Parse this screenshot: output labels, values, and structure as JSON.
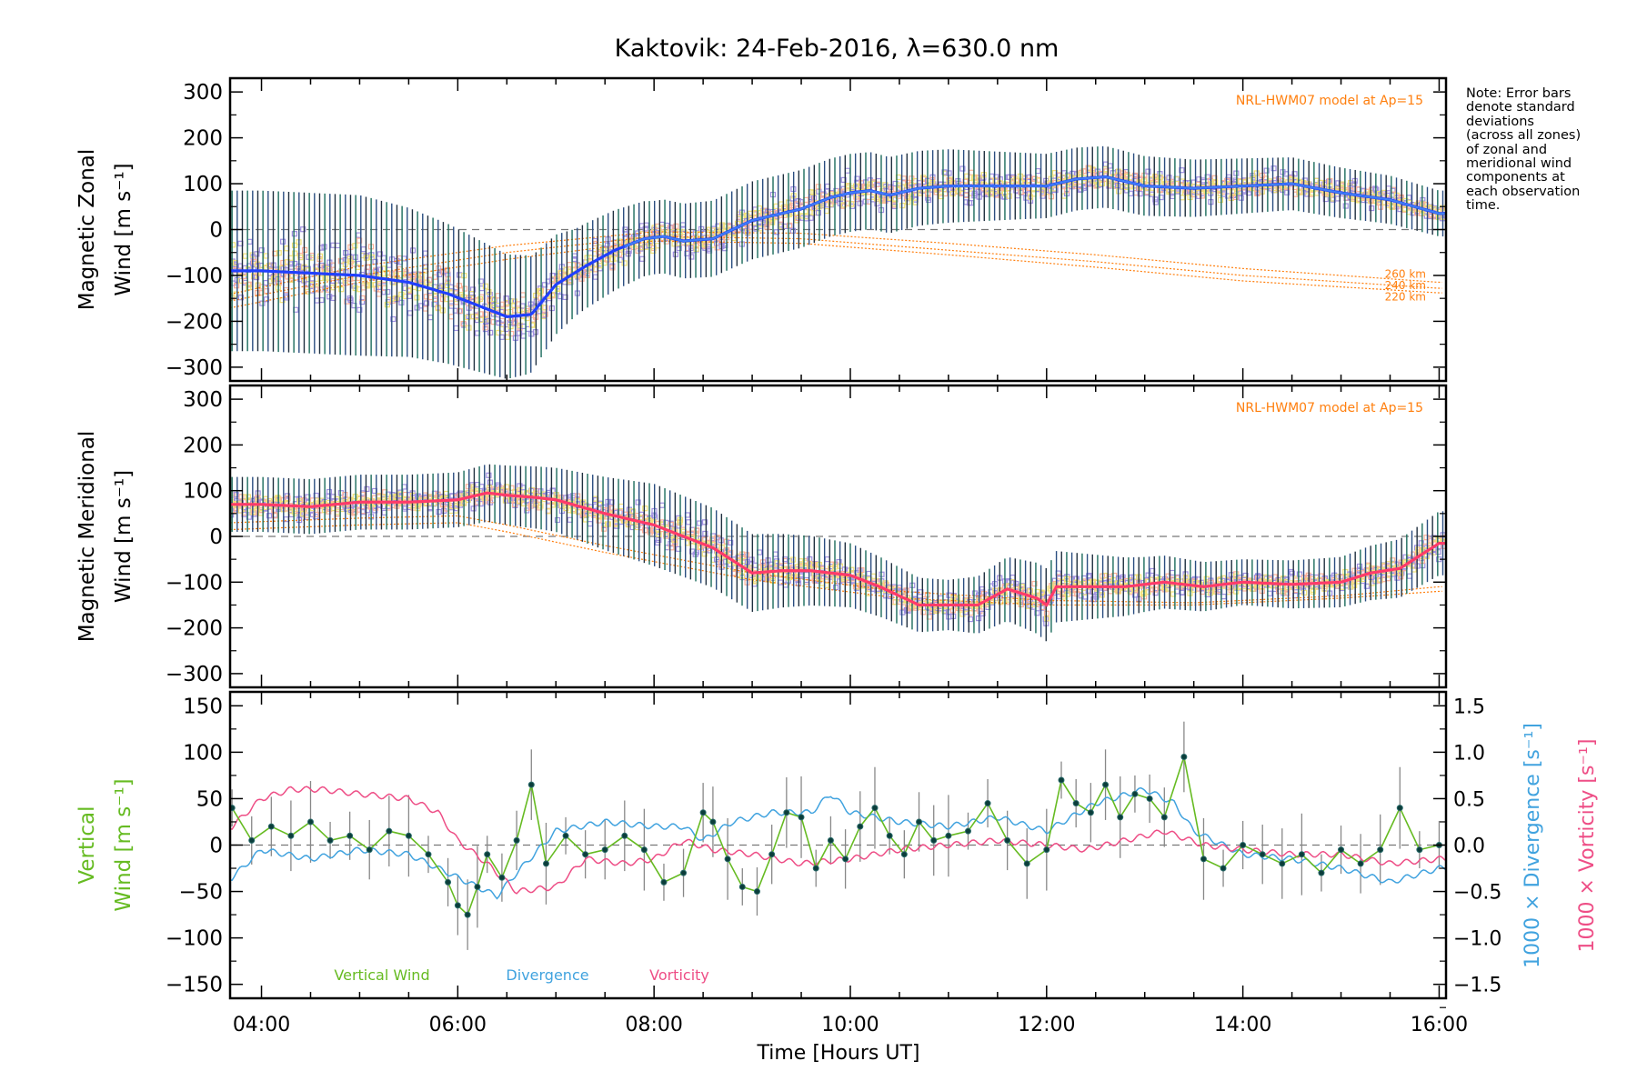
{
  "title": "Kaktovik: 24-Feb-2016, λ=630.0 nm",
  "note": "Note: Error bars\ndenote standard\ndeviations\n(across all zones)\nof zonal and\nmeridional wind\ncomponents at\neach observation\ntime.",
  "colors": {
    "zonal": "#2140ff",
    "meridional": "#ff3b6a",
    "vertical": "#66bb22",
    "divergence": "#41a3df",
    "vorticity": "#ee4e86",
    "model": "#ff7f0e",
    "scatter_purple": "#a090e0",
    "scatter_salmon": "#ffb29a",
    "scatter_yellow": "#f1e27a"
  },
  "chart_data": [
    {
      "type": "line",
      "name": "zonal",
      "ylabel": [
        "Magnetic Zonal",
        "Wind [m s⁻¹]"
      ],
      "ylim": [
        -330,
        330
      ],
      "yticks": [
        -300,
        -200,
        -100,
        0,
        100,
        200,
        300
      ],
      "xlim": [
        3.68,
        16.07
      ],
      "model_label": "NRL-HWM07 model at Ap=15",
      "model_alt_labels": [
        "260 km",
        "240 km",
        "220 km"
      ],
      "mean_curve": {
        "x": [
          3.7,
          4.0,
          4.5,
          5.0,
          5.5,
          5.9,
          6.2,
          6.5,
          6.75,
          7.0,
          7.3,
          7.6,
          7.9,
          8.1,
          8.3,
          8.6,
          9.0,
          9.5,
          9.8,
          10.0,
          10.2,
          10.4,
          10.7,
          11.0,
          11.5,
          12.0,
          12.3,
          12.6,
          13.0,
          13.5,
          14.0,
          14.5,
          15.0,
          15.5,
          16.0
        ],
        "y": [
          -90,
          -90,
          -95,
          -100,
          -115,
          -140,
          -165,
          -190,
          -185,
          -120,
          -80,
          -45,
          -20,
          -15,
          -25,
          -20,
          20,
          45,
          70,
          80,
          85,
          75,
          90,
          95,
          95,
          95,
          110,
          115,
          95,
          90,
          95,
          100,
          80,
          65,
          35
        ]
      },
      "model_curves": [
        {
          "label": "260 km",
          "x": [
            3.7,
            5.0,
            6.5,
            8.0,
            9.5,
            11.0,
            12.5,
            14.0,
            16.0
          ],
          "y": [
            -140,
            -80,
            -35,
            -5,
            -8,
            -30,
            -55,
            -85,
            -115
          ]
        },
        {
          "label": "240 km",
          "x": [
            3.7,
            5.0,
            6.5,
            8.0,
            9.5,
            11.0,
            12.5,
            14.0,
            16.0
          ],
          "y": [
            -155,
            -100,
            -50,
            -15,
            -20,
            -45,
            -70,
            -100,
            -128
          ]
        },
        {
          "label": "220 km",
          "x": [
            3.7,
            5.0,
            6.5,
            8.0,
            9.5,
            11.0,
            12.5,
            14.0,
            16.0
          ],
          "y": [
            -170,
            -115,
            -65,
            -25,
            -30,
            -55,
            -82,
            -112,
            -138
          ]
        }
      ],
      "errorbar_halfwidth": {
        "x": [
          3.7,
          5.0,
          6.0,
          6.7,
          7.2,
          8.0,
          9.0,
          10.0,
          11.0,
          12.0,
          13.0,
          14.0,
          15.0,
          16.0
        ],
        "y": [
          175,
          175,
          150,
          130,
          95,
          80,
          85,
          85,
          80,
          70,
          65,
          60,
          55,
          50
        ]
      }
    },
    {
      "type": "line",
      "name": "meridional",
      "ylabel": [
        "Magnetic Meridional",
        "Wind [m s⁻¹]"
      ],
      "ylim": [
        -330,
        330
      ],
      "yticks": [
        -300,
        -200,
        -100,
        0,
        100,
        200,
        300
      ],
      "xlim": [
        3.68,
        16.07
      ],
      "model_label": "NRL-HWM07 model at Ap=15",
      "mean_curve": {
        "x": [
          3.7,
          4.0,
          4.5,
          5.0,
          5.5,
          6.0,
          6.3,
          6.5,
          6.8,
          7.0,
          7.5,
          8.0,
          8.3,
          8.6,
          9.0,
          9.3,
          9.6,
          10.0,
          10.3,
          10.7,
          11.0,
          11.3,
          11.6,
          11.9,
          12.0,
          12.1,
          12.4,
          12.8,
          13.2,
          13.6,
          14.0,
          14.5,
          15.0,
          15.3,
          15.6,
          16.0
        ],
        "y": [
          70,
          70,
          65,
          75,
          75,
          80,
          95,
          90,
          85,
          80,
          50,
          25,
          0,
          -25,
          -80,
          -75,
          -75,
          -85,
          -110,
          -150,
          -150,
          -150,
          -115,
          -135,
          -150,
          -110,
          -110,
          -110,
          -100,
          -110,
          -100,
          -105,
          -100,
          -80,
          -70,
          -15
        ]
      },
      "model_curves": [
        {
          "x": [
            3.7,
            5.0,
            6.0,
            6.5,
            7.5,
            9.0,
            10.5,
            12.0,
            13.5,
            15.0,
            16.0
          ],
          "y": [
            30,
            40,
            45,
            25,
            -20,
            -80,
            -120,
            -140,
            -145,
            -130,
            -110
          ]
        },
        {
          "x": [
            3.7,
            5.0,
            6.0,
            6.5,
            7.5,
            9.0,
            10.5,
            12.0,
            13.5,
            15.0,
            16.0
          ],
          "y": [
            15,
            25,
            30,
            10,
            -35,
            -95,
            -135,
            -150,
            -150,
            -135,
            -120
          ]
        }
      ],
      "errorbar_halfwidth": {
        "x": [
          3.7,
          6.0,
          7.0,
          8.0,
          9.0,
          10.0,
          11.0,
          12.0,
          13.0,
          14.0,
          15.0,
          16.0
        ],
        "y": [
          60,
          60,
          70,
          90,
          85,
          70,
          55,
          80,
          60,
          50,
          55,
          70
        ]
      }
    },
    {
      "type": "line",
      "name": "vertical",
      "ylabel": [
        "Vertical",
        "Wind [m s⁻¹]"
      ],
      "ylim": [
        -165,
        165
      ],
      "yticks": [
        -150,
        -100,
        -50,
        0,
        50,
        100,
        150
      ],
      "right_axis_ticks": [
        "1.5",
        "1.0",
        "0.5",
        "0.0",
        "−0.5",
        "−1.0",
        "−1.5"
      ],
      "right_labels": [
        "1000 × Divergence [s⁻¹]",
        "1000 × Vorticity [s⁻¹]"
      ],
      "xlim": [
        3.68,
        16.07
      ],
      "xlabel": "Time [Hours UT]",
      "xticks": [
        "04:00",
        "06:00",
        "08:00",
        "10:00",
        "12:00",
        "14:00",
        "16:00"
      ],
      "xtick_values": [
        4,
        6,
        8,
        10,
        12,
        14,
        16
      ],
      "legend": [
        "Vertical Wind",
        "Divergence",
        "Vorticity"
      ],
      "series": [
        {
          "name": "Vertical Wind",
          "x": [
            3.7,
            3.9,
            4.1,
            4.3,
            4.5,
            4.7,
            4.9,
            5.1,
            5.3,
            5.5,
            5.7,
            5.9,
            6.0,
            6.1,
            6.2,
            6.3,
            6.45,
            6.6,
            6.75,
            6.9,
            7.1,
            7.3,
            7.5,
            7.7,
            7.9,
            8.1,
            8.3,
            8.5,
            8.6,
            8.75,
            8.9,
            9.05,
            9.2,
            9.35,
            9.5,
            9.65,
            9.8,
            9.95,
            10.1,
            10.25,
            10.4,
            10.55,
            10.7,
            10.85,
            11.0,
            11.2,
            11.4,
            11.6,
            11.8,
            12.0,
            12.15,
            12.3,
            12.45,
            12.6,
            12.75,
            12.9,
            13.05,
            13.2,
            13.4,
            13.6,
            13.8,
            14.0,
            14.2,
            14.4,
            14.6,
            14.8,
            15.0,
            15.2,
            15.4,
            15.6,
            15.8,
            16.0
          ],
          "y": [
            40,
            5,
            20,
            10,
            25,
            5,
            10,
            -5,
            15,
            10,
            -10,
            -40,
            -65,
            -75,
            -45,
            -10,
            -35,
            5,
            65,
            -20,
            10,
            -10,
            -5,
            10,
            -5,
            -40,
            -30,
            35,
            25,
            -15,
            -45,
            -50,
            -10,
            35,
            30,
            -25,
            5,
            -15,
            20,
            40,
            10,
            -10,
            25,
            5,
            10,
            15,
            45,
            5,
            -20,
            -5,
            70,
            45,
            35,
            65,
            30,
            55,
            50,
            30,
            95,
            -15,
            -25,
            0,
            -10,
            -20,
            -10,
            -30,
            -5,
            -20,
            -5,
            40,
            -5,
            0
          ]
        },
        {
          "name": "Divergence",
          "x": [
            3.7,
            4.0,
            4.5,
            5.0,
            5.5,
            6.0,
            6.2,
            6.4,
            6.6,
            7.0,
            7.5,
            8.0,
            8.3,
            8.5,
            8.8,
            9.2,
            9.6,
            9.8,
            10.0,
            10.5,
            11.0,
            11.5,
            12.0,
            12.5,
            13.0,
            13.3,
            13.5,
            14.0,
            14.5,
            15.0,
            15.5,
            16.0
          ],
          "y": [
            -0.35,
            -0.05,
            -0.15,
            -0.05,
            -0.1,
            -0.35,
            -0.45,
            -0.55,
            -0.3,
            0.15,
            0.25,
            0.2,
            0.2,
            0.05,
            0.25,
            0.35,
            0.35,
            0.55,
            0.35,
            0.25,
            0.2,
            0.3,
            0.15,
            0.45,
            0.6,
            0.45,
            0.15,
            -0.1,
            -0.15,
            -0.25,
            -0.4,
            -0.25
          ]
        },
        {
          "name": "Vorticity",
          "x": [
            3.7,
            4.0,
            4.3,
            4.6,
            5.0,
            5.5,
            5.8,
            6.0,
            6.3,
            6.6,
            7.0,
            7.3,
            7.7,
            8.0,
            8.3,
            8.6,
            9.0,
            9.5,
            10.0,
            10.5,
            11.0,
            11.5,
            12.0,
            12.4,
            12.8,
            13.2,
            13.6,
            14.0,
            14.5,
            15.0,
            15.5,
            16.0
          ],
          "y": [
            0.2,
            0.5,
            0.6,
            0.6,
            0.55,
            0.5,
            0.35,
            0.05,
            -0.2,
            -0.5,
            -0.45,
            -0.15,
            -0.2,
            -0.15,
            0.05,
            -0.05,
            -0.1,
            -0.2,
            -0.15,
            -0.05,
            0.0,
            0.05,
            0.0,
            -0.05,
            0.05,
            0.15,
            0.0,
            -0.05,
            -0.1,
            -0.1,
            -0.2,
            -0.15
          ]
        }
      ]
    }
  ]
}
